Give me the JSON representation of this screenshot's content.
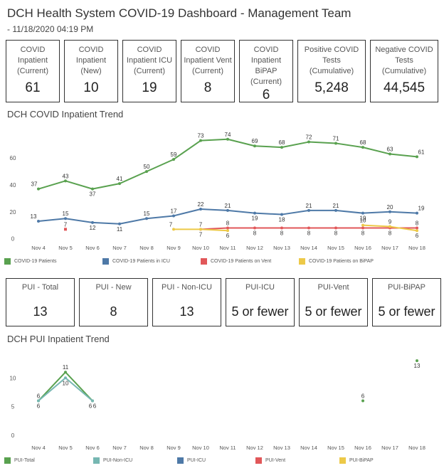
{
  "header": {
    "title": "DCH Health System COVID-19 Dashboard - Management Team",
    "subtitle": "- 11/18/2020 04:19 PM"
  },
  "kpis_top": [
    {
      "label": "COVID\nInpatient\n(Current)",
      "value": "61"
    },
    {
      "label": "COVID\nInpatient\n(New)",
      "value": "10"
    },
    {
      "label": "COVID\nInpatient ICU\n(Current)",
      "value": "19"
    },
    {
      "label": "COVID\nInpatient Vent\n(Current)",
      "value": "8"
    },
    {
      "label": "COVID\nInpatient BiPAP\n(Current)",
      "value": "6"
    },
    {
      "label": "Positive COVID\nTests\n(Cumulative)",
      "value": "5,248"
    },
    {
      "label": "Negative COVID\nTests\n(Cumulative)",
      "value": "44,545"
    }
  ],
  "kpis_pui": [
    {
      "label": "PUI - Total",
      "value": "13"
    },
    {
      "label": "PUI - New",
      "value": "8"
    },
    {
      "label": "PUI - Non-ICU",
      "value": "13"
    },
    {
      "label": "PUI-ICU",
      "value": "5 or fewer"
    },
    {
      "label": "PUI-Vent",
      "value": "5 or fewer"
    },
    {
      "label": "PUI-BiPAP",
      "value": "5 or fewer"
    }
  ],
  "covid_trend_title": "DCH COVID Inpatient Trend",
  "pui_trend_title": "DCH PUI Inpatient Trend",
  "legend_covid": [
    {
      "label": "COVID-19 Patients",
      "color": "#59a14f"
    },
    {
      "label": "COVID-19 Patients in ICU",
      "color": "#4e79a7"
    },
    {
      "label": "COVID-19 Patients on Vent",
      "color": "#e15759"
    },
    {
      "label": "COVID-19 Patients on BiPAP",
      "color": "#edc948"
    }
  ],
  "legend_pui": [
    {
      "label": "PUI-Total",
      "color": "#59a14f"
    },
    {
      "label": "PUI-Non-ICU",
      "color": "#76b7b2"
    },
    {
      "label": "PUI-ICU",
      "color": "#4e79a7"
    },
    {
      "label": "PUI-Vent",
      "color": "#e15759"
    },
    {
      "label": "PUI-BiPAP",
      "color": "#edc948"
    }
  ],
  "chart_data": [
    {
      "type": "line",
      "title": "DCH COVID Inpatient Trend",
      "categories": [
        "Nov 4",
        "Nov 5",
        "Nov 6",
        "Nov 7",
        "Nov 8",
        "Nov 9",
        "Nov 10",
        "Nov 11",
        "Nov 12",
        "Nov 13",
        "Nov 14",
        "Nov 15",
        "Nov 16",
        "Nov 17",
        "Nov 18"
      ],
      "yticks": [
        "0",
        "20",
        "40",
        "60"
      ],
      "ylim": [
        -5,
        85
      ],
      "series": [
        {
          "name": "COVID-19 Patients",
          "color": "#59a14f",
          "values": [
            37,
            43,
            37,
            41,
            50,
            59,
            73,
            74,
            69,
            68,
            72,
            71,
            68,
            63,
            61
          ],
          "label_pos": "above"
        },
        {
          "name": "COVID-19 Patients in ICU",
          "color": "#4e79a7",
          "values": [
            13,
            15,
            12,
            11,
            15,
            17,
            22,
            21,
            19,
            18,
            21,
            21,
            19,
            20,
            19
          ],
          "label_pos": "mixed"
        },
        {
          "name": "COVID-19 Patients on Vent",
          "color": "#e15759",
          "values": [
            null,
            7,
            null,
            null,
            null,
            null,
            7,
            8,
            8,
            8,
            8,
            8,
            8,
            8,
            8
          ],
          "label_pos": "mixed"
        },
        {
          "name": "COVID-19 Patients on BiPAP",
          "color": "#edc948",
          "values": [
            null,
            null,
            null,
            null,
            null,
            7,
            7,
            6,
            null,
            null,
            null,
            null,
            10,
            9,
            6
          ],
          "label_pos": "mixed"
        }
      ],
      "grid": false,
      "legend": "bottom"
    },
    {
      "type": "line",
      "title": "DCH PUI Inpatient Trend",
      "categories": [
        "Nov 4",
        "Nov 5",
        "Nov 6",
        "Nov 7",
        "Nov 8",
        "Nov 9",
        "Nov 10",
        "Nov 11",
        "Nov 12",
        "Nov 13",
        "Nov 14",
        "Nov 15",
        "Nov 16",
        "Nov 17",
        "Nov 18"
      ],
      "yticks": [
        "0",
        "5",
        "10"
      ],
      "ylim": [
        -1,
        14.5
      ],
      "series": [
        {
          "name": "PUI-Total",
          "color": "#59a14f",
          "values": [
            6,
            11,
            6,
            null,
            null,
            null,
            null,
            null,
            null,
            null,
            null,
            null,
            6,
            null,
            13
          ]
        },
        {
          "name": "PUI-Non-ICU",
          "color": "#76b7b2",
          "values": [
            6,
            10,
            6,
            null,
            null,
            null,
            null,
            null,
            null,
            null,
            null,
            null,
            null,
            null,
            null
          ]
        }
      ],
      "grid": false,
      "legend": "bottom"
    }
  ]
}
